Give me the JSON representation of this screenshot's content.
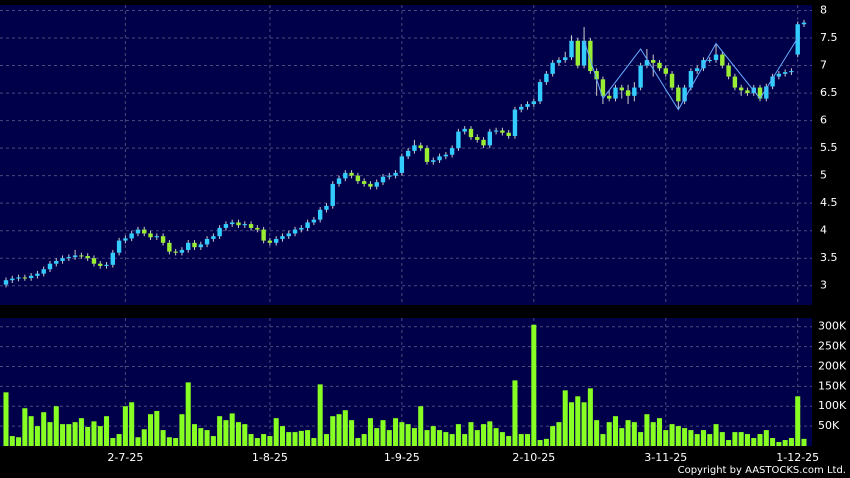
{
  "chart_data": {
    "type": "candlestick",
    "categories": [
      null,
      null,
      null,
      null,
      null,
      null,
      null,
      null,
      null,
      null,
      null,
      null,
      null,
      null,
      null,
      null,
      null,
      null,
      null,
      "2-7-25",
      null,
      null,
      null,
      null,
      null,
      null,
      null,
      null,
      null,
      null,
      null,
      null,
      null,
      null,
      null,
      null,
      null,
      null,
      null,
      null,
      null,
      null,
      "1-8-25",
      null,
      null,
      null,
      null,
      null,
      null,
      null,
      null,
      null,
      null,
      null,
      null,
      null,
      null,
      null,
      null,
      null,
      null,
      null,
      null,
      "1-9-25",
      null,
      null,
      null,
      null,
      null,
      null,
      null,
      null,
      null,
      null,
      null,
      null,
      null,
      null,
      null,
      null,
      null,
      null,
      null,
      null,
      "2-10-25",
      null,
      null,
      null,
      null,
      null,
      null,
      null,
      null,
      null,
      null,
      null,
      null,
      null,
      null,
      null,
      null,
      null,
      null,
      null,
      null,
      "3-11-25",
      null,
      null,
      null,
      null,
      null,
      null,
      null,
      null,
      null,
      null,
      null,
      null,
      null,
      null,
      null,
      null,
      null,
      null,
      null,
      null,
      "1-12-25",
      null
    ],
    "open": [
      3.02,
      3.1,
      3.13,
      3.15,
      3.14,
      3.18,
      3.22,
      3.3,
      3.4,
      3.45,
      3.5,
      3.52,
      3.55,
      3.54,
      3.5,
      3.4,
      3.36,
      3.38,
      3.6,
      3.82,
      3.86,
      3.95,
      4.02,
      3.95,
      3.88,
      3.9,
      3.78,
      3.62,
      3.6,
      3.65,
      3.78,
      3.7,
      3.75,
      3.85,
      3.9,
      4.05,
      4.12,
      4.15,
      4.1,
      4.12,
      4.05,
      4.02,
      3.82,
      3.78,
      3.85,
      3.9,
      3.95,
      4.02,
      4.05,
      4.15,
      4.2,
      4.38,
      4.45,
      4.85,
      4.95,
      5.05,
      5.0,
      4.9,
      4.85,
      4.8,
      4.88,
      4.98,
      5.0,
      5.05,
      5.35,
      5.45,
      5.55,
      5.5,
      5.25,
      5.28,
      5.35,
      5.38,
      5.5,
      5.8,
      5.85,
      5.7,
      5.65,
      5.55,
      5.8,
      5.82,
      5.78,
      5.72,
      6.2,
      6.25,
      6.3,
      6.35,
      6.7,
      6.85,
      7.05,
      7.1,
      7.15,
      7.45,
      7.0,
      7.45,
      6.9,
      6.75,
      6.45,
      6.4,
      6.6,
      6.55,
      6.45,
      6.6,
      7.0,
      7.1,
      7.05,
      6.95,
      6.85,
      6.6,
      6.35,
      6.6,
      6.9,
      6.95,
      7.1,
      7.1,
      7.2,
      7.0,
      6.8,
      6.6,
      6.55,
      6.5,
      6.6,
      6.4,
      6.62,
      6.8,
      6.85,
      6.88,
      7.2,
      7.75
    ],
    "high": [
      3.15,
      3.18,
      3.2,
      3.2,
      3.23,
      3.27,
      3.35,
      3.45,
      3.5,
      3.55,
      3.57,
      3.65,
      3.6,
      3.59,
      3.55,
      3.45,
      3.43,
      3.65,
      3.87,
      3.91,
      4.0,
      4.07,
      4.07,
      4.0,
      3.95,
      3.95,
      3.83,
      3.67,
      3.7,
      3.83,
      3.83,
      3.8,
      3.9,
      3.95,
      4.1,
      4.17,
      4.2,
      4.2,
      4.17,
      4.17,
      4.1,
      4.07,
      3.87,
      3.9,
      3.95,
      4.0,
      4.07,
      4.1,
      4.2,
      4.25,
      4.43,
      4.5,
      4.9,
      5.0,
      5.1,
      5.1,
      5.05,
      4.95,
      4.9,
      4.93,
      5.03,
      5.05,
      5.1,
      5.4,
      5.5,
      5.65,
      5.6,
      5.55,
      5.33,
      5.4,
      5.43,
      5.55,
      5.85,
      5.9,
      5.9,
      5.75,
      5.7,
      5.85,
      5.87,
      5.87,
      5.83,
      6.25,
      6.3,
      6.35,
      6.4,
      6.75,
      6.9,
      7.1,
      7.15,
      7.25,
      7.55,
      7.5,
      7.7,
      7.5,
      6.95,
      6.8,
      6.55,
      6.65,
      6.65,
      6.65,
      6.7,
      7.05,
      7.3,
      7.2,
      7.1,
      7.0,
      6.9,
      6.65,
      6.65,
      6.95,
      7.0,
      7.15,
      7.15,
      7.4,
      7.25,
      7.05,
      6.85,
      6.65,
      6.6,
      6.65,
      6.65,
      6.67,
      6.85,
      6.9,
      6.93,
      6.95,
      7.8,
      7.83
    ],
    "low": [
      2.97,
      3.05,
      3.08,
      3.09,
      3.09,
      3.13,
      3.17,
      3.25,
      3.35,
      3.4,
      3.45,
      3.47,
      3.49,
      3.45,
      3.35,
      3.31,
      3.31,
      3.33,
      3.55,
      3.77,
      3.81,
      3.9,
      3.9,
      3.83,
      3.83,
      3.73,
      3.57,
      3.55,
      3.55,
      3.6,
      3.65,
      3.65,
      3.7,
      3.8,
      3.85,
      4.0,
      4.07,
      4.05,
      4.05,
      4.0,
      3.97,
      3.77,
      3.73,
      3.73,
      3.8,
      3.85,
      3.9,
      3.97,
      4.0,
      4.1,
      4.15,
      4.33,
      4.4,
      4.8,
      4.9,
      4.95,
      4.85,
      4.8,
      4.75,
      4.75,
      4.83,
      4.93,
      4.95,
      5.0,
      5.3,
      5.4,
      5.45,
      5.2,
      5.2,
      5.23,
      5.3,
      5.33,
      5.45,
      5.75,
      5.65,
      5.6,
      5.5,
      5.5,
      5.75,
      5.73,
      5.67,
      5.67,
      6.15,
      6.2,
      6.25,
      6.3,
      6.65,
      6.8,
      7.0,
      7.05,
      7.1,
      6.95,
      6.95,
      6.85,
      6.45,
      6.3,
      6.35,
      6.35,
      6.4,
      6.3,
      6.35,
      6.55,
      6.95,
      6.8,
      6.9,
      6.8,
      6.55,
      6.2,
      6.3,
      6.55,
      6.85,
      6.9,
      7.05,
      7.05,
      6.95,
      6.75,
      6.55,
      6.45,
      6.45,
      6.45,
      6.35,
      6.35,
      6.57,
      6.75,
      6.8,
      6.83,
      7.15,
      7.7
    ],
    "close": [
      3.1,
      3.13,
      3.15,
      3.14,
      3.18,
      3.22,
      3.3,
      3.4,
      3.45,
      3.5,
      3.52,
      3.55,
      3.54,
      3.5,
      3.4,
      3.36,
      3.38,
      3.6,
      3.82,
      3.86,
      3.95,
      4.02,
      3.95,
      3.88,
      3.9,
      3.78,
      3.62,
      3.6,
      3.65,
      3.78,
      3.7,
      3.75,
      3.85,
      3.9,
      4.05,
      4.12,
      4.15,
      4.1,
      4.12,
      4.05,
      4.02,
      3.82,
      3.78,
      3.85,
      3.9,
      3.95,
      4.02,
      4.05,
      4.15,
      4.2,
      4.38,
      4.45,
      4.85,
      4.95,
      5.05,
      5.0,
      4.9,
      4.85,
      4.8,
      4.88,
      4.98,
      5.0,
      5.05,
      5.35,
      5.45,
      5.55,
      5.5,
      5.25,
      5.28,
      5.35,
      5.38,
      5.5,
      5.8,
      5.85,
      5.7,
      5.65,
      5.55,
      5.8,
      5.82,
      5.78,
      5.72,
      6.2,
      6.25,
      6.3,
      6.35,
      6.7,
      6.85,
      7.05,
      7.1,
      7.15,
      7.45,
      7.0,
      7.45,
      6.9,
      6.75,
      6.45,
      6.4,
      6.6,
      6.55,
      6.45,
      6.6,
      7.0,
      7.1,
      7.05,
      6.95,
      6.85,
      6.6,
      6.35,
      6.6,
      6.9,
      6.95,
      7.1,
      7.1,
      7.2,
      7.0,
      6.8,
      6.6,
      6.55,
      6.5,
      6.6,
      6.4,
      6.62,
      6.8,
      6.85,
      6.88,
      6.9,
      7.75,
      7.78
    ],
    "up_color": "#33ccff",
    "down_color": "#99ee33",
    "zigzag": {
      "color": "#66aaff",
      "x": [
        92,
        95,
        101,
        107,
        113,
        120,
        126
      ],
      "values": [
        7.45,
        6.4,
        7.3,
        6.2,
        7.4,
        6.4,
        7.5
      ]
    },
    "ylim": [
      2.65,
      8.1
    ],
    "yticks": [
      3,
      3.5,
      4,
      4.5,
      5,
      5.5,
      6,
      6.5,
      7,
      7.5,
      8
    ],
    "volume": {
      "color": "#88ff22",
      "values": [
        135000,
        25000,
        22000,
        95000,
        75000,
        50000,
        85000,
        60000,
        100000,
        55000,
        55000,
        60000,
        70000,
        48000,
        62000,
        50000,
        75000,
        20000,
        30000,
        100000,
        110000,
        22000,
        42000,
        80000,
        88000,
        40000,
        22000,
        20000,
        80000,
        160000,
        55000,
        45000,
        40000,
        25000,
        75000,
        65000,
        82000,
        60000,
        55000,
        30000,
        20000,
        30000,
        25000,
        70000,
        50000,
        35000,
        35000,
        38000,
        40000,
        20000,
        155000,
        30000,
        75000,
        80000,
        90000,
        65000,
        20000,
        30000,
        70000,
        45000,
        65000,
        40000,
        70000,
        60000,
        55000,
        45000,
        100000,
        40000,
        50000,
        40000,
        35000,
        30000,
        55000,
        30000,
        60000,
        40000,
        55000,
        62000,
        45000,
        35000,
        25000,
        165000,
        30000,
        30000,
        305000,
        15000,
        18000,
        50000,
        60000,
        140000,
        110000,
        125000,
        110000,
        145000,
        65000,
        30000,
        60000,
        75000,
        45000,
        65000,
        60000,
        35000,
        80000,
        60000,
        70000,
        40000,
        55000,
        50000,
        45000,
        40000,
        30000,
        40000,
        30000,
        55000,
        35000,
        15000,
        35000,
        35000,
        30000,
        20000,
        30000,
        40000,
        20000,
        10000,
        15000,
        20000,
        125000,
        18000
      ]
    },
    "y2lim": [
      0,
      322000
    ],
    "y2ticks": [
      {
        "value": 50000,
        "label": "50K"
      },
      {
        "value": 100000,
        "label": "100K"
      },
      {
        "value": 150000,
        "label": "150K"
      },
      {
        "value": 200000,
        "label": "200K"
      },
      {
        "value": 250000,
        "label": "250K"
      },
      {
        "value": 300000,
        "label": "300K"
      }
    ],
    "grid": true,
    "copyright": "Copyright by AASTOCKS.com Ltd."
  }
}
